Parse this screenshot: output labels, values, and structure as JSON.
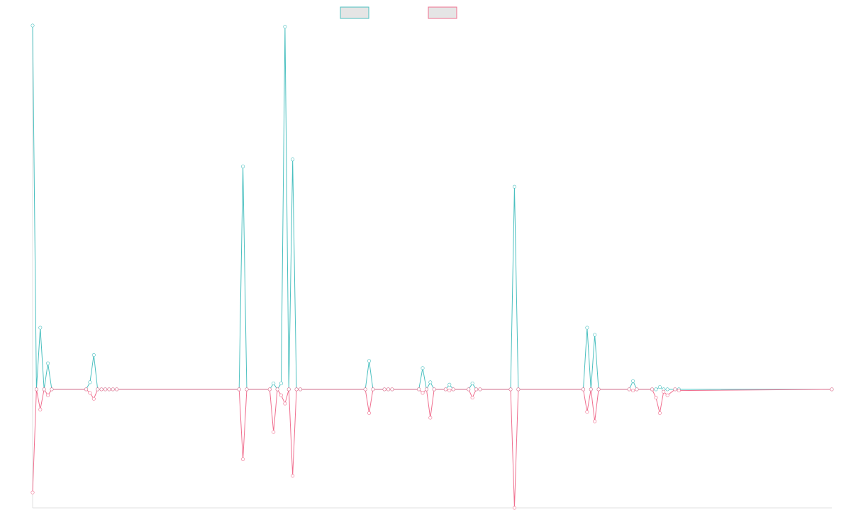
{
  "chart_data": {
    "type": "line",
    "title": "",
    "xlabel": "",
    "ylabel": "",
    "legend_position": "top-center",
    "grid": false,
    "ylim": [
      -1.0,
      3.07
    ],
    "series": [
      {
        "name": "",
        "color": "#4bc0c0",
        "fill": "#e5e5e5",
        "points": [
          {
            "i": 0,
            "v": 3.07
          },
          {
            "i": 1,
            "v": 0
          },
          {
            "i": 2,
            "v": 0.52
          },
          {
            "i": 3,
            "v": 0
          },
          {
            "i": 4,
            "v": 0.22
          },
          {
            "i": 5,
            "v": 0
          },
          {
            "i": 14,
            "v": 0
          },
          {
            "i": 15,
            "v": 0.06
          },
          {
            "i": 16,
            "v": 0.29
          },
          {
            "i": 17,
            "v": 0
          },
          {
            "i": 18,
            "v": 0
          },
          {
            "i": 19,
            "v": 0
          },
          {
            "i": 20,
            "v": 0
          },
          {
            "i": 21,
            "v": 0
          },
          {
            "i": 22,
            "v": 0
          },
          {
            "i": 54,
            "v": 0
          },
          {
            "i": 55,
            "v": 1.88
          },
          {
            "i": 56,
            "v": 0
          },
          {
            "i": 62,
            "v": 0
          },
          {
            "i": 63,
            "v": 0.05
          },
          {
            "i": 64,
            "v": 0
          },
          {
            "i": 65,
            "v": 0.05
          },
          {
            "i": 66,
            "v": 3.06
          },
          {
            "i": 67,
            "v": 0
          },
          {
            "i": 68,
            "v": 1.94
          },
          {
            "i": 69,
            "v": 0
          },
          {
            "i": 70,
            "v": 0
          },
          {
            "i": 87,
            "v": 0
          },
          {
            "i": 88,
            "v": 0.24
          },
          {
            "i": 89,
            "v": 0
          },
          {
            "i": 92,
            "v": 0
          },
          {
            "i": 93,
            "v": 0
          },
          {
            "i": 94,
            "v": 0
          },
          {
            "i": 101,
            "v": 0
          },
          {
            "i": 102,
            "v": 0.18
          },
          {
            "i": 103,
            "v": 0
          },
          {
            "i": 104,
            "v": 0.06
          },
          {
            "i": 105,
            "v": 0
          },
          {
            "i": 108,
            "v": 0
          },
          {
            "i": 109,
            "v": 0.04
          },
          {
            "i": 110,
            "v": 0
          },
          {
            "i": 114,
            "v": 0
          },
          {
            "i": 115,
            "v": 0.05
          },
          {
            "i": 116,
            "v": 0
          },
          {
            "i": 117,
            "v": 0
          },
          {
            "i": 125,
            "v": 0
          },
          {
            "i": 126,
            "v": 1.71
          },
          {
            "i": 127,
            "v": 0
          },
          {
            "i": 144,
            "v": 0
          },
          {
            "i": 145,
            "v": 0.52
          },
          {
            "i": 146,
            "v": 0
          },
          {
            "i": 147,
            "v": 0.46
          },
          {
            "i": 148,
            "v": 0
          },
          {
            "i": 156,
            "v": 0
          },
          {
            "i": 157,
            "v": 0.07
          },
          {
            "i": 158,
            "v": 0
          },
          {
            "i": 162,
            "v": 0
          },
          {
            "i": 163,
            "v": 0
          },
          {
            "i": 164,
            "v": 0.02
          },
          {
            "i": 165,
            "v": 0
          },
          {
            "i": 166,
            "v": 0
          },
          {
            "i": 168,
            "v": 0
          },
          {
            "i": 169,
            "v": 0
          },
          {
            "i": 209,
            "v": 0
          }
        ]
      },
      {
        "name": "",
        "color": "#f06f8f",
        "fill": "#e5e5e5",
        "points": [
          {
            "i": 0,
            "v": -0.87
          },
          {
            "i": 1,
            "v": 0
          },
          {
            "i": 2,
            "v": -0.17
          },
          {
            "i": 3,
            "v": 0
          },
          {
            "i": 4,
            "v": -0.05
          },
          {
            "i": 5,
            "v": 0
          },
          {
            "i": 14,
            "v": 0
          },
          {
            "i": 15,
            "v": -0.03
          },
          {
            "i": 16,
            "v": -0.08
          },
          {
            "i": 17,
            "v": 0
          },
          {
            "i": 18,
            "v": 0
          },
          {
            "i": 19,
            "v": 0
          },
          {
            "i": 20,
            "v": 0
          },
          {
            "i": 21,
            "v": 0
          },
          {
            "i": 22,
            "v": 0
          },
          {
            "i": 54,
            "v": 0
          },
          {
            "i": 55,
            "v": -0.59
          },
          {
            "i": 56,
            "v": 0
          },
          {
            "i": 62,
            "v": 0
          },
          {
            "i": 63,
            "v": -0.36
          },
          {
            "i": 64,
            "v": 0
          },
          {
            "i": 65,
            "v": -0.05
          },
          {
            "i": 66,
            "v": -0.12
          },
          {
            "i": 67,
            "v": 0
          },
          {
            "i": 68,
            "v": -0.73
          },
          {
            "i": 69,
            "v": 0
          },
          {
            "i": 70,
            "v": 0
          },
          {
            "i": 87,
            "v": 0
          },
          {
            "i": 88,
            "v": -0.2
          },
          {
            "i": 89,
            "v": 0
          },
          {
            "i": 92,
            "v": 0
          },
          {
            "i": 93,
            "v": 0
          },
          {
            "i": 94,
            "v": 0
          },
          {
            "i": 101,
            "v": 0
          },
          {
            "i": 102,
            "v": -0.03
          },
          {
            "i": 103,
            "v": 0
          },
          {
            "i": 104,
            "v": -0.24
          },
          {
            "i": 105,
            "v": 0
          },
          {
            "i": 108,
            "v": 0
          },
          {
            "i": 109,
            "v": -0.01
          },
          {
            "i": 110,
            "v": 0
          },
          {
            "i": 114,
            "v": 0
          },
          {
            "i": 115,
            "v": -0.07
          },
          {
            "i": 116,
            "v": 0
          },
          {
            "i": 117,
            "v": 0
          },
          {
            "i": 125,
            "v": 0
          },
          {
            "i": 126,
            "v": -1.0
          },
          {
            "i": 127,
            "v": 0
          },
          {
            "i": 144,
            "v": 0
          },
          {
            "i": 145,
            "v": -0.19
          },
          {
            "i": 146,
            "v": 0
          },
          {
            "i": 147,
            "v": -0.27
          },
          {
            "i": 148,
            "v": 0
          },
          {
            "i": 156,
            "v": 0
          },
          {
            "i": 157,
            "v": -0.01
          },
          {
            "i": 158,
            "v": 0
          },
          {
            "i": 162,
            "v": 0
          },
          {
            "i": 163,
            "v": -0.07
          },
          {
            "i": 164,
            "v": -0.2
          },
          {
            "i": 165,
            "v": -0.02
          },
          {
            "i": 166,
            "v": -0.05
          },
          {
            "i": 168,
            "v": 0
          },
          {
            "i": 169,
            "v": -0.01
          },
          {
            "i": 209,
            "v": 0
          }
        ]
      }
    ]
  }
}
